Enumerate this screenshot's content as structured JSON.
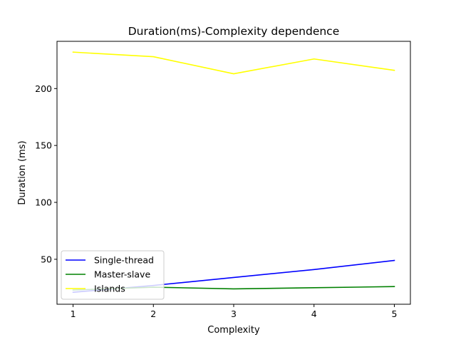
{
  "chart_data": {
    "type": "line",
    "title": "Duration(ms)-Complexity dependence",
    "xlabel": "Complexity",
    "ylabel": "Duration (ms)",
    "x": [
      1,
      2,
      3,
      4,
      5
    ],
    "xlim": [
      0.8,
      5.2
    ],
    "ylim": [
      10.5,
      241.5
    ],
    "xticks": [
      1,
      2,
      3,
      4,
      5
    ],
    "yticks": [
      50,
      100,
      150,
      200
    ],
    "legend_position": "lower-left",
    "grid": false,
    "series": [
      {
        "name": "Single-thread",
        "color": "#0000ff",
        "values": [
          21,
          27,
          34,
          41,
          49
        ]
      },
      {
        "name": "Master-slave",
        "color": "#008000",
        "values": [
          23,
          25.5,
          24,
          25,
          26
        ]
      },
      {
        "name": "Islands",
        "color": "#ffff00",
        "values": [
          232,
          228,
          213,
          226,
          216
        ]
      }
    ]
  }
}
